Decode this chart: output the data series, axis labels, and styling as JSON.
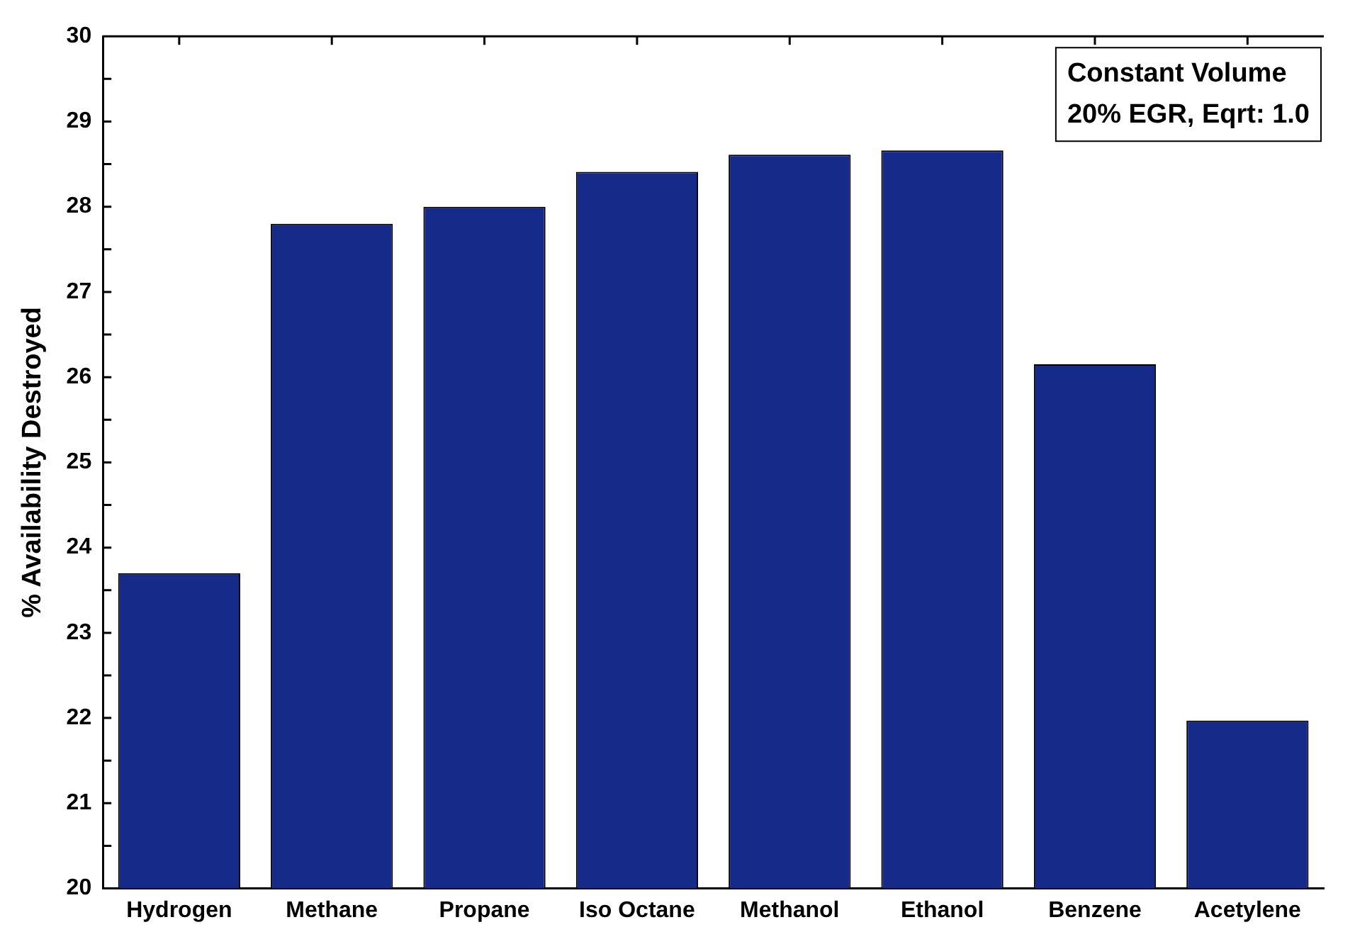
{
  "chart_data": {
    "type": "bar",
    "ylabel": "% Availability Destroyed",
    "categories": [
      "Hydrogen",
      "Methane",
      "Propane",
      "Iso Octane",
      "Methanol",
      "Ethanol",
      "Benzene",
      "Acetylene"
    ],
    "values": [
      23.7,
      27.8,
      28.0,
      28.41,
      28.61,
      28.66,
      26.15,
      21.97
    ],
    "color": "#162a8a",
    "ylim": [
      20,
      30
    ],
    "yticks": [
      20,
      {
        "value": 20.5,
        "label": null
      },
      21,
      {
        "value": 21.5,
        "label": null
      },
      22,
      {
        "value": 22.5,
        "label": null
      },
      23,
      {
        "value": 23.5,
        "label": null
      },
      24,
      {
        "value": 24.5,
        "label": null
      },
      25,
      {
        "value": 25.5,
        "label": null
      },
      26,
      {
        "value": 26.5,
        "label": null
      },
      27,
      {
        "value": 27.5,
        "label": null
      },
      28,
      {
        "value": 28.5,
        "label": null
      },
      29,
      {
        "value": 29.5,
        "label": null
      },
      30
    ],
    "annotations": [
      "Constant Volume",
      "20% EGR, Eqrt: 1.0"
    ],
    "grid": false,
    "legend": false
  }
}
